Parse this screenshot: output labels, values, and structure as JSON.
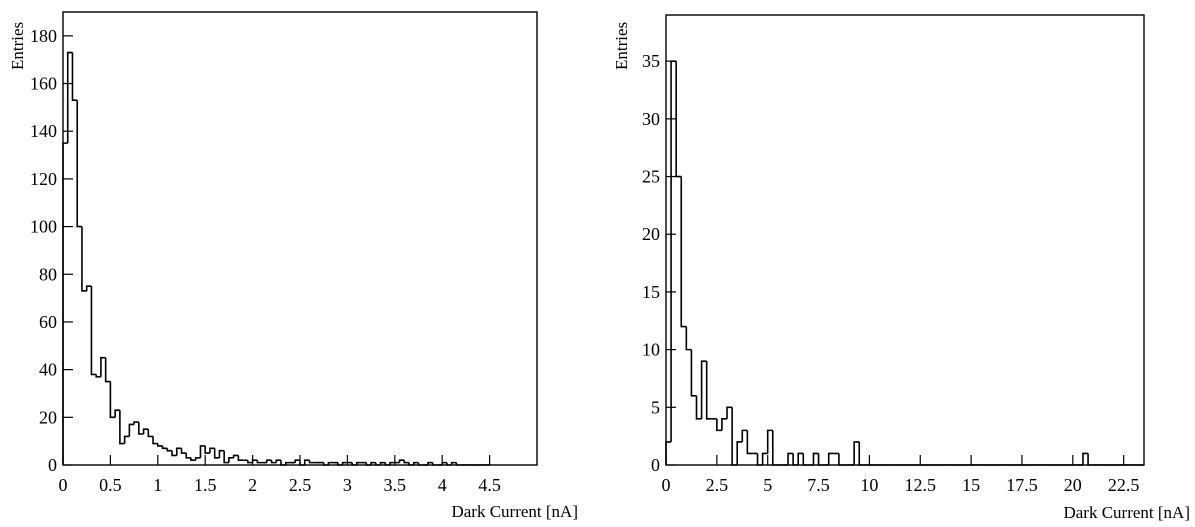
{
  "chart_data": [
    {
      "type": "histogram",
      "title": "",
      "xlabel": "Dark Current [nA]",
      "ylabel": "Entries",
      "xlim": [
        0,
        5
      ],
      "ylim": [
        0,
        190
      ],
      "x_ticks": [
        0,
        0.5,
        1,
        1.5,
        2,
        2.5,
        3,
        3.5,
        4,
        4.5
      ],
      "x_tick_labels": [
        "0",
        "0.5",
        "1",
        "1.5",
        "2",
        "2.5",
        "3",
        "3.5",
        "4",
        "4.5"
      ],
      "y_ticks": [
        0,
        20,
        40,
        60,
        80,
        100,
        120,
        140,
        160,
        180
      ],
      "y_tick_labels": [
        "0",
        "20",
        "40",
        "60",
        "80",
        "100",
        "120",
        "140",
        "160",
        "180"
      ],
      "bin_edges": [
        0,
        0.05,
        0.1,
        0.15,
        0.2,
        0.25,
        0.3,
        0.35,
        0.4,
        0.45,
        0.5,
        0.55,
        0.6,
        0.65,
        0.7,
        0.75,
        0.8,
        0.85,
        0.9,
        0.95,
        1.0,
        1.05,
        1.1,
        1.15,
        1.2,
        1.25,
        1.3,
        1.35,
        1.4,
        1.45,
        1.5,
        1.55,
        1.6,
        1.65,
        1.7,
        1.75,
        1.8,
        1.85,
        1.9,
        1.95,
        2.0,
        2.05,
        2.1,
        2.15,
        2.2,
        2.25,
        2.3,
        2.35,
        2.4,
        2.45,
        2.5,
        2.55,
        2.6,
        2.65,
        2.7,
        2.75,
        2.8,
        2.85,
        2.9,
        2.95,
        3.0,
        3.05,
        3.1,
        3.15,
        3.2,
        3.25,
        3.3,
        3.35,
        3.4,
        3.45,
        3.5,
        3.55,
        3.6,
        3.65,
        3.7,
        3.75,
        3.8,
        3.85,
        3.9,
        3.95,
        4.0,
        4.05,
        4.1,
        4.15,
        4.2,
        4.25,
        4.3,
        4.35,
        4.4,
        4.45,
        4.5
      ],
      "values": [
        135,
        173,
        153,
        100,
        73,
        75,
        38,
        37,
        45,
        35,
        20,
        23,
        9,
        12,
        17,
        18,
        13,
        15,
        12,
        9,
        8,
        7,
        6,
        4,
        7,
        5,
        3,
        2,
        3,
        8,
        5,
        7,
        3,
        6,
        1,
        3,
        4,
        2,
        2,
        1,
        2,
        1,
        1,
        2,
        1,
        2,
        0,
        1,
        1,
        2,
        0,
        2,
        1,
        1,
        1,
        0,
        1,
        1,
        0,
        1,
        1,
        0,
        1,
        1,
        0,
        1,
        0,
        1,
        0,
        1,
        1,
        2,
        1,
        0,
        1,
        0,
        0,
        1,
        0,
        0,
        1,
        0,
        1,
        0,
        0,
        0,
        0,
        0,
        0,
        0
      ]
    },
    {
      "type": "histogram",
      "title": "",
      "xlabel": "Dark Current [nA]",
      "ylabel": "Entries",
      "xlim": [
        0,
        23.5
      ],
      "ylim": [
        0,
        39
      ],
      "x_ticks": [
        0,
        2.5,
        5,
        7.5,
        10,
        12.5,
        15,
        17.5,
        20,
        22.5
      ],
      "x_tick_labels": [
        "0",
        "2.5",
        "5",
        "7.5",
        "10",
        "12.5",
        "15",
        "17.5",
        "20",
        "22.5"
      ],
      "y_ticks": [
        0,
        5,
        10,
        15,
        20,
        25,
        30,
        35
      ],
      "y_tick_labels": [
        "0",
        "5",
        "10",
        "15",
        "20",
        "25",
        "30",
        "35"
      ],
      "bin_edges": [
        0,
        0.25,
        0.5,
        0.75,
        1.0,
        1.25,
        1.5,
        1.75,
        2.0,
        2.25,
        2.5,
        2.75,
        3.0,
        3.25,
        3.5,
        3.75,
        4.0,
        4.25,
        4.5,
        4.75,
        5.0,
        5.25,
        5.5,
        5.75,
        6.0,
        6.25,
        6.5,
        6.75,
        7.0,
        7.25,
        7.5,
        7.75,
        8.0,
        8.25,
        8.5,
        8.75,
        9.0,
        9.25,
        9.5,
        9.75,
        10.0,
        10.25,
        10.5,
        10.75,
        11.0,
        11.25,
        11.5,
        11.75,
        12.0,
        12.25,
        12.5,
        12.75,
        13.0,
        13.25,
        13.5,
        13.75,
        14.0,
        14.25,
        14.5,
        14.75,
        15.0,
        15.25,
        15.5,
        15.75,
        16.0,
        16.25,
        16.5,
        16.75,
        17.0,
        17.25,
        17.5,
        17.75,
        18.0,
        18.25,
        18.5,
        18.75,
        19.0,
        19.25,
        19.5,
        19.75,
        20.0,
        20.25,
        20.5,
        20.75,
        21.0,
        21.25,
        21.5,
        21.75,
        22.0,
        22.25,
        22.5,
        22.75,
        23.0,
        23.25,
        23.5
      ],
      "values": [
        2,
        35,
        25,
        12,
        10,
        6,
        4,
        9,
        4,
        4,
        3,
        4,
        5,
        0,
        2,
        3,
        1,
        1,
        0,
        1,
        3,
        0,
        0,
        0,
        1,
        0,
        1,
        0,
        0,
        1,
        0,
        0,
        1,
        1,
        0,
        0,
        0,
        2,
        0,
        0,
        0,
        0,
        0,
        0,
        0,
        0,
        0,
        0,
        0,
        0,
        0,
        0,
        0,
        0,
        0,
        0,
        0,
        0,
        0,
        0,
        0,
        0,
        0,
        0,
        0,
        0,
        0,
        0,
        0,
        0,
        0,
        0,
        0,
        0,
        0,
        0,
        0,
        0,
        0,
        0,
        0,
        0,
        1,
        0,
        0,
        0,
        0,
        0,
        0,
        0,
        0,
        0,
        0,
        0
      ]
    }
  ]
}
